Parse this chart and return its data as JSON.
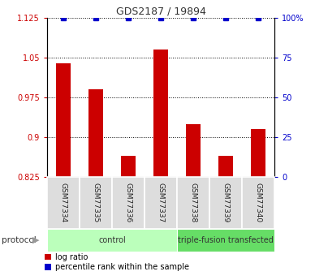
{
  "title": "GDS2187 / 19894",
  "samples": [
    "GSM77334",
    "GSM77335",
    "GSM77336",
    "GSM77337",
    "GSM77338",
    "GSM77339",
    "GSM77340"
  ],
  "log_ratio": [
    1.04,
    0.99,
    0.865,
    1.065,
    0.925,
    0.865,
    0.915
  ],
  "percentile_rank": [
    100,
    100,
    100,
    100,
    100,
    100,
    100
  ],
  "ylim_left": [
    0.825,
    1.125
  ],
  "ylim_right": [
    0,
    100
  ],
  "yticks_left": [
    0.825,
    0.9,
    0.975,
    1.05,
    1.125
  ],
  "yticks_right": [
    0,
    25,
    50,
    75,
    100
  ],
  "ytick_labels_left": [
    "0.825",
    "0.9",
    "0.975",
    "1.05",
    "1.125"
  ],
  "ytick_labels_right": [
    "0",
    "25",
    "50",
    "75",
    "100%"
  ],
  "bar_color": "#cc0000",
  "dot_color": "#0000cc",
  "title_color": "#333333",
  "left_tick_color": "#cc0000",
  "right_tick_color": "#0000cc",
  "protocol_groups": [
    {
      "label": "control",
      "start": 0,
      "end": 4,
      "color": "#bbffbb"
    },
    {
      "label": "triple-fusion transfected",
      "start": 4,
      "end": 7,
      "color": "#66dd66"
    }
  ],
  "protocol_label": "protocol",
  "legend_log_ratio": "log ratio",
  "legend_percentile": "percentile rank within the sample",
  "bar_width": 0.45,
  "sample_box_color": "#dddddd",
  "figsize": [
    3.88,
    3.45
  ],
  "dpi": 100
}
